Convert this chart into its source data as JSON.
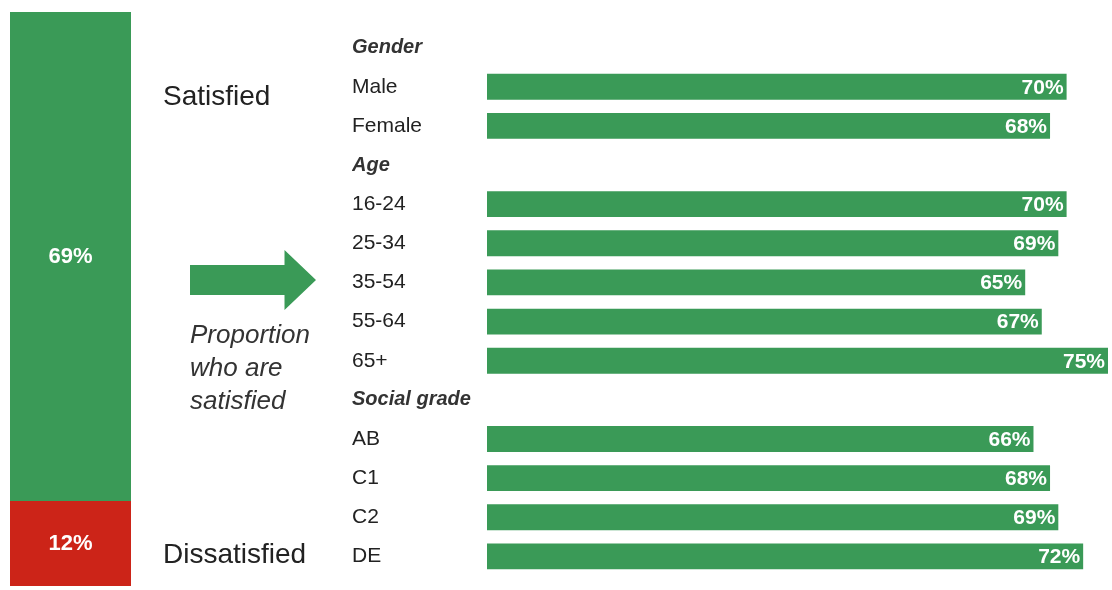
{
  "chart_data": [
    {
      "type": "bar",
      "stacked": true,
      "categories": [
        null
      ],
      "legend": false,
      "series": [
        {
          "name": "Dissatisfied",
          "color": "#cc2418",
          "values": [
            12
          ],
          "value_labels": [
            "12%"
          ]
        },
        {
          "name": "Satisfied",
          "color": "#3a9a57",
          "values": [
            69
          ],
          "value_labels": [
            "69%"
          ]
        }
      ]
    },
    {
      "type": "bar",
      "orientation": "horizontal",
      "legend": false,
      "color": "#3a9a57",
      "annotations": [
        "Proportion who are satisfied"
      ],
      "categories": [
        "Gender",
        "Male",
        "Female",
        "Age",
        "16-24",
        "25-34",
        "35-54",
        "55-64",
        "65+",
        "Social grade",
        "AB",
        "C1",
        "C2",
        "DE"
      ],
      "values": [
        null,
        70,
        68,
        null,
        70,
        69,
        65,
        67,
        75,
        null,
        66,
        68,
        69,
        72
      ],
      "value_labels": [
        null,
        "70%",
        "68%",
        null,
        "70%",
        "69%",
        "65%",
        "67%",
        "75%",
        null,
        "66%",
        "68%",
        "69%",
        "72%"
      ]
    }
  ]
}
